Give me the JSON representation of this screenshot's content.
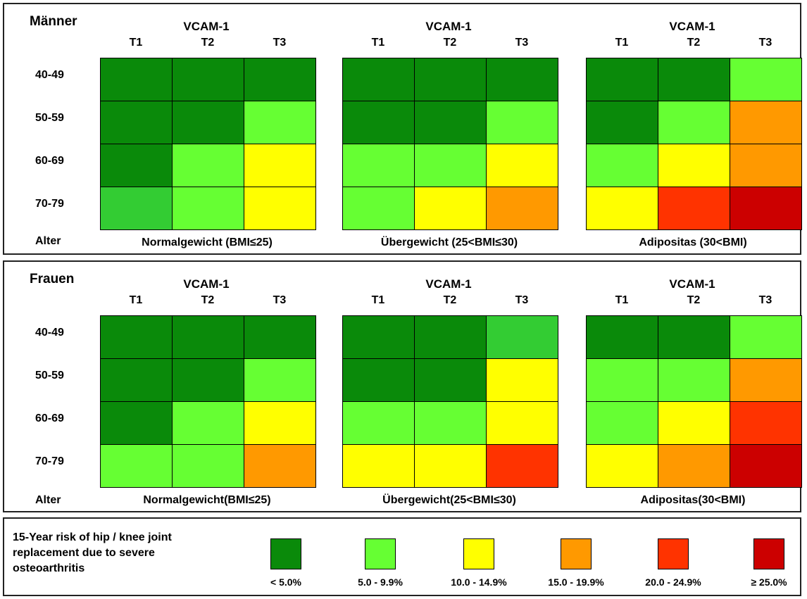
{
  "chart_data": {
    "type": "heatmap",
    "legend_title": "15-Year risk of hip / knee joint replacement due to severe osteoarthritis",
    "legend": [
      {
        "label": "< 5.0%",
        "color": "#0a8a0a"
      },
      {
        "label": "5.0 - 9.9%",
        "color": "#66ff33"
      },
      {
        "label": "10.0 - 14.9%",
        "color": "#ffff00"
      },
      {
        "label": "15.0 - 19.9%",
        "color": "#ff9900"
      },
      {
        "label": "20.0 - 24.9%",
        "color": "#ff3300"
      },
      {
        "label": "≥ 25.0%",
        "color": "#cc0000"
      }
    ],
    "color_map": {
      "0": "#0a8a0a",
      "0.5": "#33cc33",
      "1": "#66ff33",
      "2": "#ffff00",
      "3": "#ff9900",
      "4": "#ff3300",
      "5": "#cc0000"
    },
    "panels": [
      {
        "title": "Männer",
        "row_axis_label": "Alter",
        "rows": [
          "40-49",
          "50-59",
          "60-69",
          "70-79"
        ],
        "columns": [
          "T1",
          "T2",
          "T3"
        ],
        "column_header": "VCAM-1",
        "groups": [
          {
            "label": "Normalgewicht (BMI≤25)",
            "values": [
              [
                0,
                0,
                0
              ],
              [
                0,
                0,
                1
              ],
              [
                0,
                1,
                2
              ],
              [
                0.5,
                1,
                2
              ]
            ]
          },
          {
            "label": "Übergewicht (25<BMI≤30)",
            "values": [
              [
                0,
                0,
                0
              ],
              [
                0,
                0,
                1
              ],
              [
                1,
                1,
                2
              ],
              [
                1,
                2,
                3
              ]
            ]
          },
          {
            "label": "Adipositas (30<BMI)",
            "values": [
              [
                0,
                0,
                1
              ],
              [
                0,
                1,
                3
              ],
              [
                1,
                2,
                3
              ],
              [
                2,
                4,
                5
              ]
            ]
          }
        ]
      },
      {
        "title": "Frauen",
        "row_axis_label": "Alter",
        "rows": [
          "40-49",
          "50-59",
          "60-69",
          "70-79"
        ],
        "columns": [
          "T1",
          "T2",
          "T3"
        ],
        "column_header": "VCAM-1",
        "groups": [
          {
            "label": "Normalgewicht(BMI≤25)",
            "values": [
              [
                0,
                0,
                0
              ],
              [
                0,
                0,
                1
              ],
              [
                0,
                1,
                2
              ],
              [
                1,
                1,
                3
              ]
            ]
          },
          {
            "label": "Übergewicht(25<BMI≤30)",
            "values": [
              [
                0,
                0,
                0.5
              ],
              [
                0,
                0,
                2
              ],
              [
                1,
                1,
                2
              ],
              [
                2,
                2,
                4
              ]
            ]
          },
          {
            "label": "Adipositas(30<BMI)",
            "values": [
              [
                0,
                0,
                1
              ],
              [
                1,
                1,
                3
              ],
              [
                1,
                2,
                4
              ],
              [
                2,
                3,
                5
              ]
            ]
          }
        ]
      }
    ]
  }
}
